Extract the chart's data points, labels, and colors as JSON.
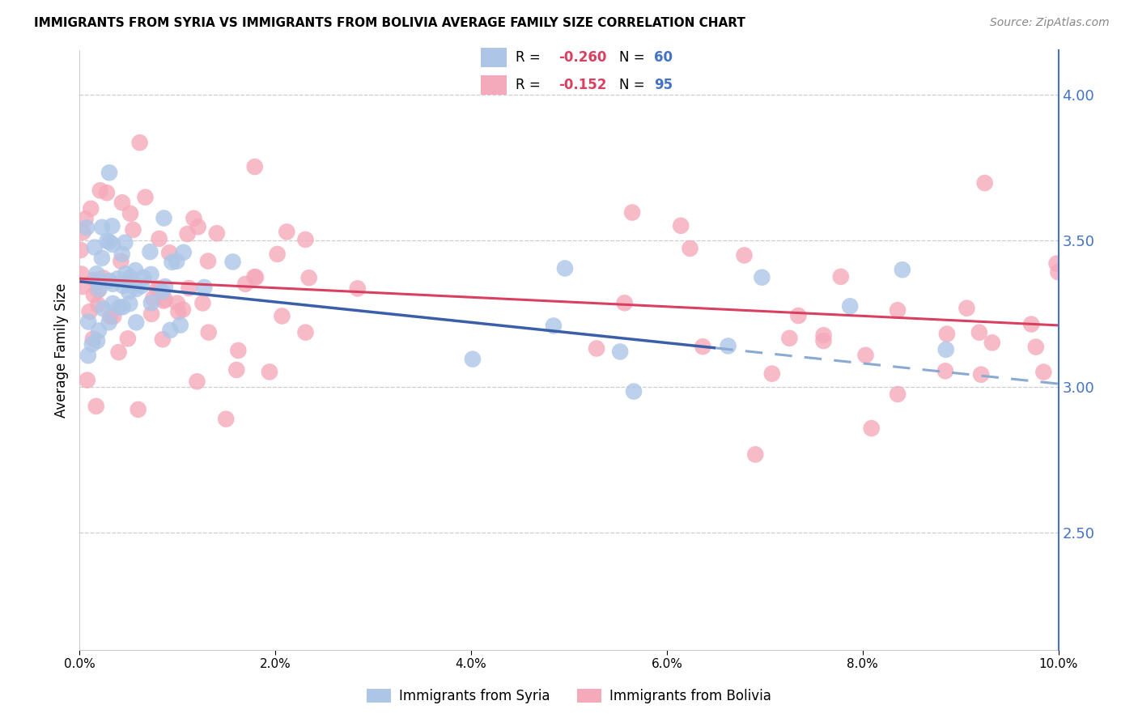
{
  "title": "IMMIGRANTS FROM SYRIA VS IMMIGRANTS FROM BOLIVIA AVERAGE FAMILY SIZE CORRELATION CHART",
  "source": "Source: ZipAtlas.com",
  "ylabel": "Average Family Size",
  "right_yticks": [
    2.5,
    3.0,
    3.5,
    4.0
  ],
  "syria_color": "#adc6e8",
  "bolivia_color": "#f5aabb",
  "syria_line_color": "#3a5fa8",
  "bolivia_line_color": "#d94060",
  "syria_dash_color": "#8aaad4",
  "syria_R": -0.26,
  "syria_N": 60,
  "bolivia_R": -0.152,
  "bolivia_N": 95,
  "xmin": 0.0,
  "xmax": 0.1,
  "ymin": 2.1,
  "ymax": 4.15,
  "xticks": [
    0.0,
    0.02,
    0.04,
    0.06,
    0.08,
    0.1
  ],
  "syria_intercept": 3.36,
  "syria_slope_per_unit": -3.5,
  "bolivia_intercept": 3.37,
  "bolivia_slope_per_unit": -1.6
}
